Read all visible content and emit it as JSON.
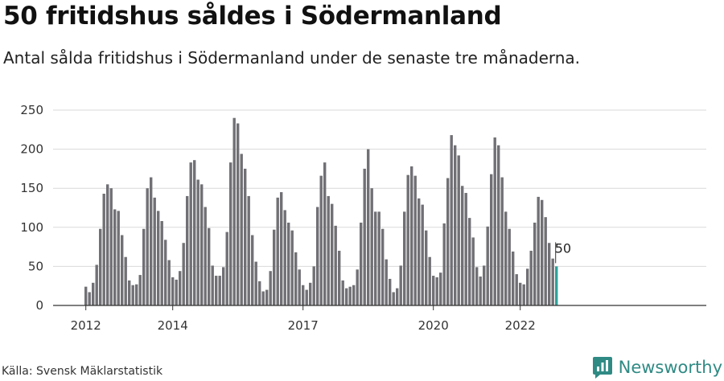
{
  "title": "50 fritidshus såldes i Södermanland",
  "subtitle": "Antal sålda fritidshus i Södermanland under de senaste tre månaderna.",
  "source": "Källa: Svensk Mäklarstatistik",
  "brand": {
    "name": "Newsworthy",
    "icon": "newsworthy-logo-icon",
    "color": "#2f8a84"
  },
  "colors": {
    "bar": "#707075",
    "highlight": "#2aa39a",
    "grid": "#d9d9d9",
    "axis": "#333333"
  },
  "chart_data": {
    "type": "bar",
    "title": "50 fritidshus såldes i Södermanland",
    "subtitle": "Antal sålda fritidshus i Södermanland under de senaste tre månaderna.",
    "xlabel": "",
    "ylabel": "",
    "ylim": [
      0,
      250
    ],
    "yticks": [
      0,
      50,
      100,
      150,
      200,
      250
    ],
    "grid": true,
    "x_start": "2012-01",
    "x_ticks": [
      {
        "label": "2012",
        "index": 0
      },
      {
        "label": "2014",
        "index": 24
      },
      {
        "label": "2017",
        "index": 60
      },
      {
        "label": "2020",
        "index": 96
      },
      {
        "label": "2022",
        "index": 120
      }
    ],
    "values": [
      24,
      17,
      29,
      52,
      98,
      143,
      155,
      150,
      123,
      121,
      90,
      62,
      32,
      26,
      27,
      39,
      98,
      150,
      164,
      138,
      121,
      108,
      84,
      58,
      36,
      33,
      44,
      80,
      140,
      183,
      186,
      161,
      155,
      126,
      99,
      51,
      38,
      38,
      49,
      94,
      183,
      240,
      233,
      194,
      175,
      140,
      90,
      56,
      31,
      18,
      20,
      44,
      97,
      138,
      145,
      122,
      106,
      96,
      68,
      46,
      26,
      20,
      29,
      50,
      126,
      166,
      183,
      140,
      130,
      102,
      70,
      32,
      22,
      24,
      26,
      46,
      106,
      175,
      200,
      150,
      120,
      120,
      98,
      59,
      34,
      17,
      22,
      51,
      120,
      167,
      178,
      166,
      137,
      129,
      96,
      62,
      38,
      36,
      42,
      105,
      163,
      218,
      205,
      192,
      153,
      144,
      112,
      87,
      49,
      37,
      51,
      101,
      168,
      215,
      205,
      164,
      120,
      98,
      69,
      40,
      29,
      27,
      47,
      70,
      106,
      139,
      135,
      113,
      80,
      60,
      50
    ],
    "highlight": {
      "index": 130,
      "value": 50,
      "label": "50"
    }
  }
}
